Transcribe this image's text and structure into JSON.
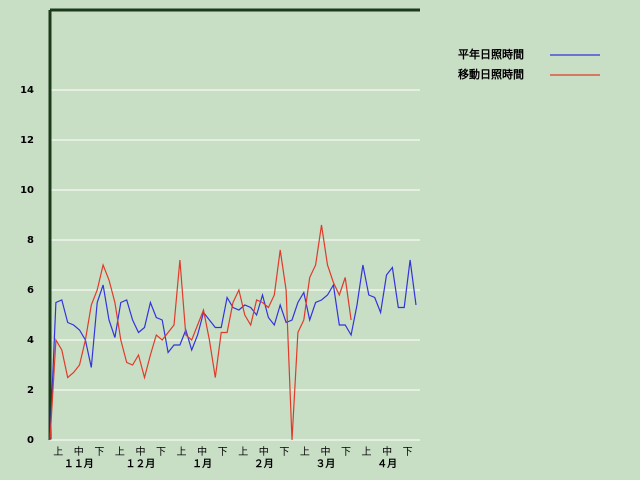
{
  "chart_data": {
    "type": "line",
    "series": [
      {
        "name": "平年日照時間",
        "color": "#3333dd",
        "values": [
          0,
          5.5,
          5.6,
          4.7,
          4.6,
          4.4,
          4.0,
          2.9,
          5.5,
          6.2,
          4.8,
          4.1,
          5.5,
          5.6,
          4.8,
          4.3,
          4.5,
          5.5,
          4.9,
          4.8,
          3.5,
          3.8,
          3.8,
          4.4,
          3.6,
          4.2,
          5.1,
          4.8,
          4.5,
          4.5,
          5.7,
          5.3,
          5.2,
          5.4,
          5.3,
          5.0,
          5.8,
          4.9,
          4.6,
          5.4,
          4.7,
          4.8,
          5.5,
          5.9,
          4.8,
          5.5,
          5.6,
          5.8,
          6.2,
          4.6,
          4.6,
          4.2,
          5.4,
          7.0,
          5.8,
          5.7,
          5.1,
          6.6,
          6.9,
          5.3,
          5.3,
          7.2,
          5.4
        ]
      },
      {
        "name": "移動日照時間",
        "color": "#e03a2a",
        "values": [
          0,
          4.0,
          3.6,
          2.5,
          2.7,
          3.0,
          4.0,
          5.4,
          6.0,
          7.0,
          6.4,
          5.5,
          4.0,
          3.1,
          3.0,
          3.4,
          2.5,
          3.4,
          4.2,
          4.0,
          4.3,
          4.6,
          7.2,
          4.2,
          4.0,
          4.6,
          5.2,
          4.0,
          2.5,
          4.3,
          4.3,
          5.5,
          6.0,
          5.0,
          4.6,
          5.6,
          5.5,
          5.3,
          5.8,
          7.6,
          6.0,
          0,
          4.3,
          4.8,
          6.5,
          7.0,
          8.6,
          7.0,
          6.3,
          5.8,
          6.5,
          4.8,
          null,
          null,
          null,
          null,
          null,
          null,
          null,
          null,
          null,
          null,
          null
        ]
      }
    ],
    "dekads": [
      "上",
      "中",
      "下"
    ],
    "months": [
      "１１月",
      "１２月",
      "１月",
      "２月",
      "３月",
      "４月"
    ],
    "ylim": [
      0,
      17.2
    ],
    "yticks": [
      0,
      2,
      4,
      6,
      8,
      10,
      12,
      14
    ],
    "grid": true
  }
}
